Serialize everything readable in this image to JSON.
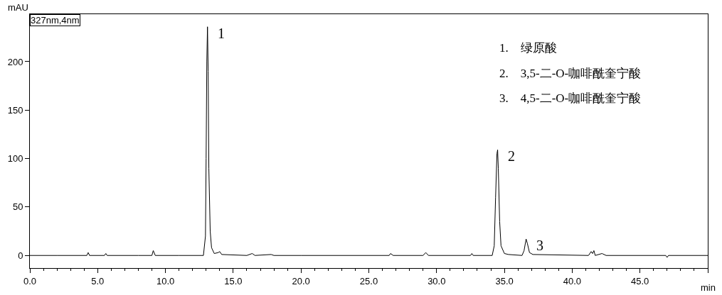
{
  "chart_data": {
    "type": "line",
    "xlabel": "min",
    "ylabel": "mAU",
    "series": [
      {
        "color": "#000000",
        "x": [
          0,
          2,
          4.2,
          4.3,
          4.4,
          5.5,
          5.6,
          5.7,
          8,
          9.0,
          9.1,
          9.25,
          11,
          12.8,
          12.95,
          13.0,
          13.05,
          13.1,
          13.15,
          13.2,
          13.3,
          13.4,
          13.6,
          13.9,
          14.0,
          14.15,
          16,
          16.4,
          16.6,
          17.8,
          18,
          20,
          26.5,
          26.6,
          26.8,
          29.0,
          29.2,
          29.4,
          32.5,
          32.6,
          32.7,
          34.1,
          34.25,
          34.35,
          34.45,
          34.5,
          34.55,
          34.65,
          34.75,
          35.0,
          35.3,
          36.3,
          36.45,
          36.6,
          36.7,
          36.85,
          37.1,
          41.2,
          41.4,
          41.5,
          41.6,
          41.7,
          42.2,
          42.5,
          46.9,
          47.0,
          47.1,
          50
        ],
        "values": [
          0,
          0,
          0,
          3,
          0,
          0,
          2,
          0,
          0,
          0,
          5,
          0,
          0,
          0,
          20,
          100,
          200,
          236,
          190,
          90,
          25,
          8,
          2,
          3,
          4,
          1,
          0,
          2,
          0,
          1,
          0,
          0,
          0,
          2,
          0,
          0,
          3,
          0,
          0,
          2,
          0,
          0,
          10,
          60,
          105,
          109,
          90,
          35,
          10,
          2,
          1,
          0,
          5,
          17,
          12,
          3,
          1,
          0,
          4,
          2,
          5,
          0,
          2,
          0,
          0,
          -2,
          0,
          0
        ]
      }
    ],
    "xlim": [
      0,
      50
    ],
    "ylim": [
      -13,
      249
    ],
    "xticks": [
      {
        "value": 0,
        "label": "0.0"
      },
      {
        "value": 5,
        "label": "5.0"
      },
      {
        "value": 10,
        "label": "10.0"
      },
      {
        "value": 15,
        "label": "15.0"
      },
      {
        "value": 20,
        "label": "20.0"
      },
      {
        "value": 25,
        "label": "25.0"
      },
      {
        "value": 30,
        "label": "30.0"
      },
      {
        "value": 35,
        "label": "35.0"
      },
      {
        "value": 40,
        "label": "40.0"
      },
      {
        "value": 45,
        "label": "45.0"
      },
      {
        "value": 50,
        "label": null
      }
    ],
    "yticks": [
      0,
      50,
      100,
      150,
      200
    ],
    "grid": false,
    "marker": "none",
    "line_style": "solid",
    "annotations": [
      {
        "text": "1",
        "x": 13.1,
        "y": 236
      },
      {
        "text": "2",
        "x": 34.5,
        "y": 109
      },
      {
        "text": "3",
        "x": 36.6,
        "y": 17
      },
      "327nm,4nm",
      "1.    绿原酸",
      "2.    3,5-二-O-咖啡酰奎宁酸",
      "3.    4,5-二-O-咖啡酰奎宁酸"
    ]
  }
}
